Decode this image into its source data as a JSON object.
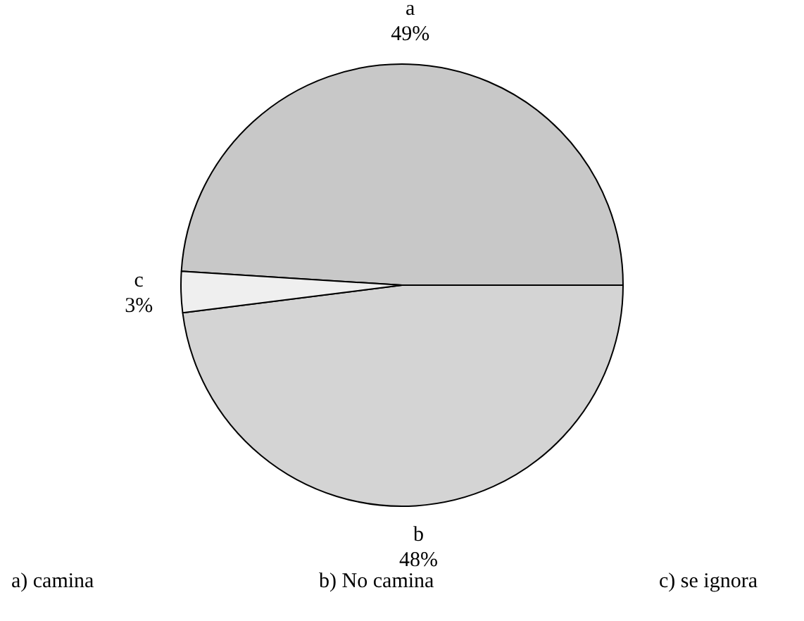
{
  "chart_data": {
    "type": "pie",
    "categories": [
      "a",
      "b",
      "c"
    ],
    "values": [
      49,
      48,
      3
    ],
    "value_labels": [
      "49%",
      "48%",
      "3%"
    ],
    "colors": [
      "#c8c8c8",
      "#d4d4d4",
      "#efefef"
    ],
    "annotations": [
      "a) camina",
      "b) No camina",
      "c) se ignora"
    ]
  }
}
